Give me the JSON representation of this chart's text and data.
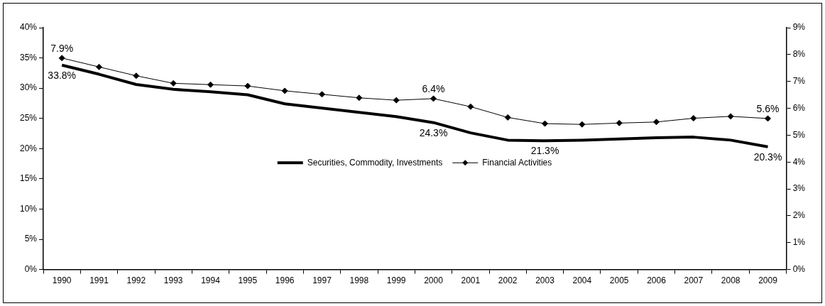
{
  "chart_data": {
    "type": "line",
    "categories": [
      "1990",
      "1991",
      "1992",
      "1993",
      "1994",
      "1995",
      "1996",
      "1997",
      "1998",
      "1999",
      "2000",
      "2001",
      "2002",
      "2003",
      "2004",
      "2005",
      "2006",
      "2007",
      "2008",
      "2009"
    ],
    "series": [
      {
        "name": "Securities, Commodity, Investments",
        "color": "#000000",
        "marker": "none",
        "values": [
          33.8,
          32.3,
          30.6,
          29.8,
          29.4,
          28.9,
          27.4,
          26.7,
          26.0,
          25.3,
          24.3,
          22.6,
          21.4,
          21.3,
          21.4,
          21.6,
          21.8,
          21.9,
          21.4,
          20.3
        ],
        "value_labels": [
          "33.8%",
          null,
          null,
          null,
          null,
          null,
          null,
          null,
          null,
          null,
          "24.3%",
          null,
          null,
          "21.3%",
          null,
          null,
          null,
          null,
          null,
          "20.3%"
        ]
      },
      {
        "name": "Financial Activities",
        "color": "#000000",
        "axis": "y2",
        "marker": "diamond",
        "values": [
          7.87,
          7.54,
          7.21,
          6.93,
          6.88,
          6.83,
          6.65,
          6.52,
          6.39,
          6.3,
          6.36,
          6.06,
          5.66,
          5.43,
          5.4,
          5.45,
          5.49,
          5.63,
          5.7,
          5.62
        ],
        "value_labels": [
          "7.9%",
          null,
          null,
          null,
          null,
          null,
          null,
          null,
          null,
          null,
          "6.4%",
          null,
          null,
          null,
          null,
          null,
          null,
          null,
          null,
          "5.6%"
        ]
      }
    ],
    "ylim": [
      0,
      40
    ],
    "yticks": [
      {
        "value": 0,
        "label": "0%"
      },
      {
        "value": 5,
        "label": "5%"
      },
      {
        "value": 10,
        "label": "10%"
      },
      {
        "value": 15,
        "label": "15%"
      },
      {
        "value": 20,
        "label": "20%"
      },
      {
        "value": 25,
        "label": "25%"
      },
      {
        "value": 30,
        "label": "30%"
      },
      {
        "value": 35,
        "label": "35%"
      },
      {
        "value": 40,
        "label": "40%"
      }
    ],
    "y2lim": [
      0,
      9
    ],
    "y2ticks": [
      {
        "value": 0,
        "label": "0%"
      },
      {
        "value": 1,
        "label": "1%"
      },
      {
        "value": 2,
        "label": "2%"
      },
      {
        "value": 3,
        "label": "3%"
      },
      {
        "value": 4,
        "label": "4%"
      },
      {
        "value": 5,
        "label": "5%"
      },
      {
        "value": 6,
        "label": "6%"
      },
      {
        "value": 7,
        "label": "7%"
      },
      {
        "value": 8,
        "label": "8%"
      },
      {
        "value": 9,
        "label": "9%"
      }
    ],
    "grid": false,
    "legend": "center",
    "line_style": "solid"
  }
}
